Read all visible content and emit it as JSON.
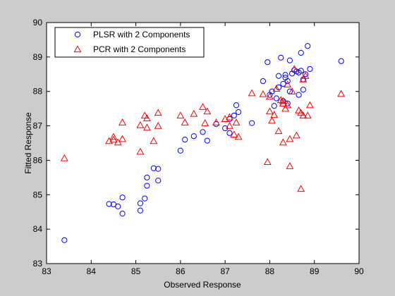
{
  "chart_data": {
    "type": "scatter",
    "xlabel": "Observed Response",
    "ylabel": "Fitted Response",
    "xlim": [
      83,
      90
    ],
    "ylim": [
      83,
      90
    ],
    "xticks": [
      "83",
      "84",
      "85",
      "86",
      "87",
      "88",
      "89",
      "90"
    ],
    "yticks": [
      "83",
      "84",
      "85",
      "86",
      "87",
      "88",
      "89",
      "90"
    ],
    "grid": false,
    "legend_position": "top-left",
    "series": [
      {
        "name": "PLSR with 2 Components",
        "marker": "circle",
        "color": "#0000ff",
        "points": [
          [
            83.4,
            83.68
          ],
          [
            84.4,
            84.73
          ],
          [
            84.5,
            84.72
          ],
          [
            84.6,
            84.66
          ],
          [
            84.7,
            84.45
          ],
          [
            84.7,
            84.92
          ],
          [
            85.1,
            84.54
          ],
          [
            85.1,
            84.75
          ],
          [
            85.2,
            84.89
          ],
          [
            85.25,
            85.26
          ],
          [
            85.25,
            85.5
          ],
          [
            85.4,
            85.77
          ],
          [
            85.5,
            85.41
          ],
          [
            85.5,
            85.75
          ],
          [
            86.0,
            86.28
          ],
          [
            86.1,
            86.6
          ],
          [
            86.3,
            86.7
          ],
          [
            86.5,
            86.82
          ],
          [
            86.6,
            86.57
          ],
          [
            86.8,
            87.05
          ],
          [
            87.0,
            86.93
          ],
          [
            87.1,
            86.79
          ],
          [
            87.1,
            87.2
          ],
          [
            87.2,
            87.3
          ],
          [
            87.3,
            87.4
          ],
          [
            87.25,
            87.6
          ],
          [
            87.6,
            87.08
          ],
          [
            87.85,
            88.3
          ],
          [
            87.95,
            88.85
          ],
          [
            88.0,
            87.9
          ],
          [
            88.05,
            88.0
          ],
          [
            88.1,
            87.58
          ],
          [
            88.15,
            87.8
          ],
          [
            88.2,
            88.45
          ],
          [
            88.2,
            88.12
          ],
          [
            88.25,
            88.98
          ],
          [
            88.3,
            87.72
          ],
          [
            88.3,
            88.22
          ],
          [
            88.35,
            88.4
          ],
          [
            88.35,
            88.48
          ],
          [
            88.4,
            88.3
          ],
          [
            88.4,
            87.65
          ],
          [
            88.45,
            88.9
          ],
          [
            88.45,
            88.0
          ],
          [
            88.5,
            88.52
          ],
          [
            88.55,
            88.62
          ],
          [
            88.6,
            88.58
          ],
          [
            88.65,
            87.9
          ],
          [
            88.65,
            88.55
          ],
          [
            88.7,
            88.6
          ],
          [
            88.7,
            89.12
          ],
          [
            88.75,
            88.35
          ],
          [
            88.75,
            88.05
          ],
          [
            88.8,
            88.5
          ],
          [
            88.85,
            89.32
          ],
          [
            88.9,
            88.65
          ],
          [
            89.6,
            88.88
          ]
        ]
      },
      {
        "name": "PCR with 2 Components",
        "marker": "triangle",
        "color": "#ff0000",
        "points": [
          [
            83.4,
            86.06
          ],
          [
            84.4,
            86.56
          ],
          [
            84.5,
            86.68
          ],
          [
            84.6,
            86.52
          ],
          [
            84.7,
            87.1
          ],
          [
            84.7,
            86.62
          ],
          [
            85.1,
            87.02
          ],
          [
            85.1,
            86.25
          ],
          [
            85.2,
            87.3
          ],
          [
            85.25,
            87.22
          ],
          [
            85.25,
            86.95
          ],
          [
            85.4,
            86.56
          ],
          [
            85.5,
            87.38
          ],
          [
            85.5,
            87.0
          ],
          [
            86.0,
            87.3
          ],
          [
            86.1,
            87.1
          ],
          [
            86.3,
            87.35
          ],
          [
            86.5,
            87.55
          ],
          [
            86.6,
            87.42
          ],
          [
            86.8,
            87.1
          ],
          [
            87.0,
            87.2
          ],
          [
            87.1,
            87.25
          ],
          [
            87.1,
            87.0
          ],
          [
            87.2,
            86.75
          ],
          [
            87.3,
            86.68
          ],
          [
            87.6,
            87.95
          ],
          [
            87.85,
            87.92
          ],
          [
            87.95,
            85.95
          ],
          [
            88.0,
            87.85
          ],
          [
            88.05,
            87.15
          ],
          [
            88.1,
            87.32
          ],
          [
            88.15,
            88.08
          ],
          [
            88.2,
            86.85
          ],
          [
            88.25,
            87.75
          ],
          [
            88.3,
            86.52
          ],
          [
            88.3,
            87.65
          ],
          [
            88.35,
            87.5
          ],
          [
            88.4,
            88.2
          ],
          [
            88.4,
            87.6
          ],
          [
            88.45,
            85.83
          ],
          [
            88.45,
            86.62
          ],
          [
            88.5,
            88.0
          ],
          [
            88.55,
            88.65
          ],
          [
            88.6,
            86.72
          ],
          [
            88.65,
            87.45
          ],
          [
            88.7,
            87.38
          ],
          [
            88.7,
            85.17
          ],
          [
            88.75,
            88.35
          ],
          [
            88.75,
            87.3
          ],
          [
            88.8,
            88.45
          ],
          [
            88.85,
            87.3
          ],
          [
            88.9,
            87.6
          ],
          [
            89.6,
            87.93
          ],
          [
            88.3,
            87.72
          ],
          [
            88.0,
            87.42
          ],
          [
            87.25,
            87.1
          ],
          [
            86.55,
            87.08
          ],
          [
            84.5,
            86.6
          ]
        ]
      }
    ]
  }
}
